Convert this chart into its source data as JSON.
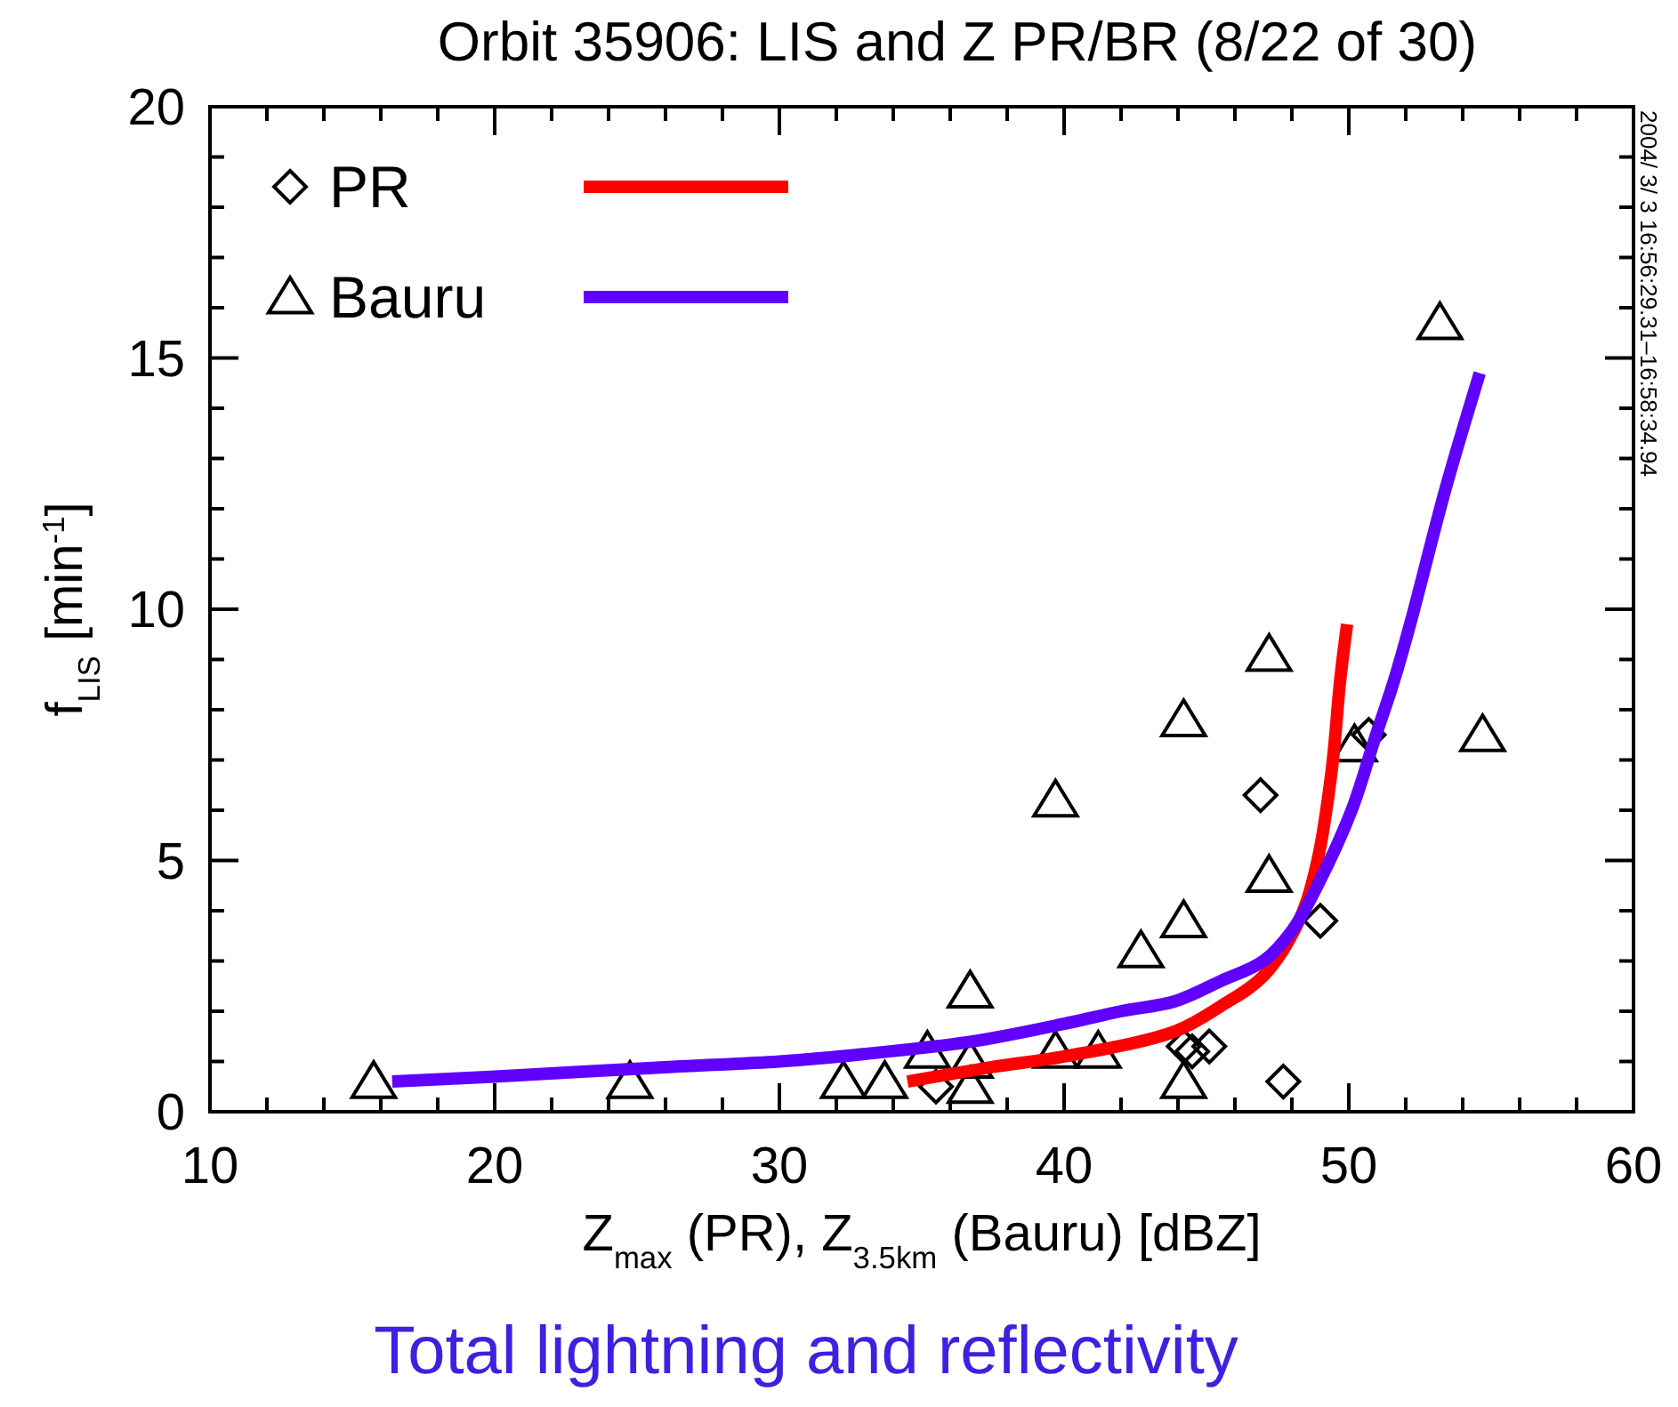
{
  "chart_data": {
    "type": "scatter",
    "title": "Orbit 35906: LIS and Z PR/BR (8/22 of 30)",
    "xlabel": "Z$_{max}$ (PR), Z$_{3.5km}$ (Bauru) [dBZ]",
    "ylabel": "f$_{LIS}$ [min$^{-1}$]",
    "annotations": [
      "2004/ 3/ 3  16:56:29.31–16:58:34.94",
      "Total lightning and reflectivity"
    ],
    "xlim": [
      10,
      60
    ],
    "ylim": [
      0,
      20
    ],
    "xticks": [
      10,
      {
        "value": 12,
        "label": null
      },
      {
        "value": 14,
        "label": null
      },
      {
        "value": 16,
        "label": null
      },
      {
        "value": 18,
        "label": null
      },
      20,
      {
        "value": 22,
        "label": null
      },
      {
        "value": 24,
        "label": null
      },
      {
        "value": 26,
        "label": null
      },
      {
        "value": 28,
        "label": null
      },
      30,
      {
        "value": 32,
        "label": null
      },
      {
        "value": 34,
        "label": null
      },
      {
        "value": 36,
        "label": null
      },
      {
        "value": 38,
        "label": null
      },
      40,
      {
        "value": 42,
        "label": null
      },
      {
        "value": 44,
        "label": null
      },
      {
        "value": 46,
        "label": null
      },
      {
        "value": 48,
        "label": null
      },
      50,
      {
        "value": 52,
        "label": null
      },
      {
        "value": 54,
        "label": null
      },
      {
        "value": 56,
        "label": null
      },
      {
        "value": 58,
        "label": null
      },
      60
    ],
    "yticks": [
      0,
      {
        "value": 1,
        "label": null
      },
      {
        "value": 2,
        "label": null
      },
      {
        "value": 3,
        "label": null
      },
      {
        "value": 4,
        "label": null
      },
      5,
      {
        "value": 6,
        "label": null
      },
      {
        "value": 7,
        "label": null
      },
      {
        "value": 8,
        "label": null
      },
      {
        "value": 9,
        "label": null
      },
      10,
      {
        "value": 11,
        "label": null
      },
      {
        "value": 12,
        "label": null
      },
      {
        "value": 13,
        "label": null
      },
      {
        "value": 14,
        "label": null
      },
      15,
      {
        "value": 16,
        "label": null
      },
      {
        "value": 17,
        "label": null
      },
      {
        "value": 18,
        "label": null
      },
      {
        "value": 19,
        "label": null
      },
      20
    ],
    "grid": false,
    "legend": "top left",
    "series": [
      {
        "name": "PR",
        "marker": "diamond",
        "color": "#000000",
        "x": [
          35.5,
          44.2,
          44.5,
          45.1,
          47.7,
          46.9,
          49.0,
          50.7
        ],
        "values": [
          0.5,
          1.3,
          1.2,
          1.3,
          0.6,
          6.3,
          3.8,
          7.5
        ]
      },
      {
        "name": "Bauru",
        "marker": "triangle",
        "color": "#000000",
        "x": [
          15.75,
          24.75,
          32.25,
          33.7,
          35.2,
          36.7,
          36.7,
          36.7,
          39.7,
          41.2,
          39.7,
          44.2,
          47.2,
          42.7,
          44.2,
          47.2,
          50.2,
          54.7,
          53.2,
          44.2
        ],
        "values": [
          0.6,
          0.6,
          0.6,
          0.6,
          1.2,
          1.0,
          2.4,
          0.5,
          1.2,
          1.2,
          6.2,
          7.8,
          9.1,
          3.2,
          3.8,
          4.7,
          7.3,
          7.5,
          15.7,
          0.6
        ]
      },
      {
        "type": "line",
        "marker": "none",
        "line_style": "solid",
        "color": "#ff0000",
        "x": [
          34.5,
          37.6,
          40,
          43.9,
          45.5,
          47,
          48.25,
          48.9,
          49.4,
          49.7,
          49.94
        ],
        "values": [
          0.6,
          0.9,
          1.1,
          1.6,
          2.1,
          2.7,
          3.8,
          5.0,
          6.8,
          8.6,
          9.7
        ]
      },
      {
        "type": "line",
        "marker": "none",
        "line_style": "solid",
        "color": "#6000ff",
        "x": [
          16.4,
          20,
          26.4,
          30,
          33,
          36.8,
          40,
          42,
          43.9,
          45.5,
          47,
          48,
          48.9,
          50.1,
          50.9,
          51.6,
          52.2,
          53.4,
          54.6
        ],
        "values": [
          0.6,
          0.7,
          0.9,
          1.0,
          1.15,
          1.4,
          1.75,
          2.0,
          2.2,
          2.6,
          3.0,
          3.6,
          4.5,
          6.0,
          7.4,
          8.6,
          9.8,
          12.4,
          14.7
        ]
      }
    ]
  }
}
